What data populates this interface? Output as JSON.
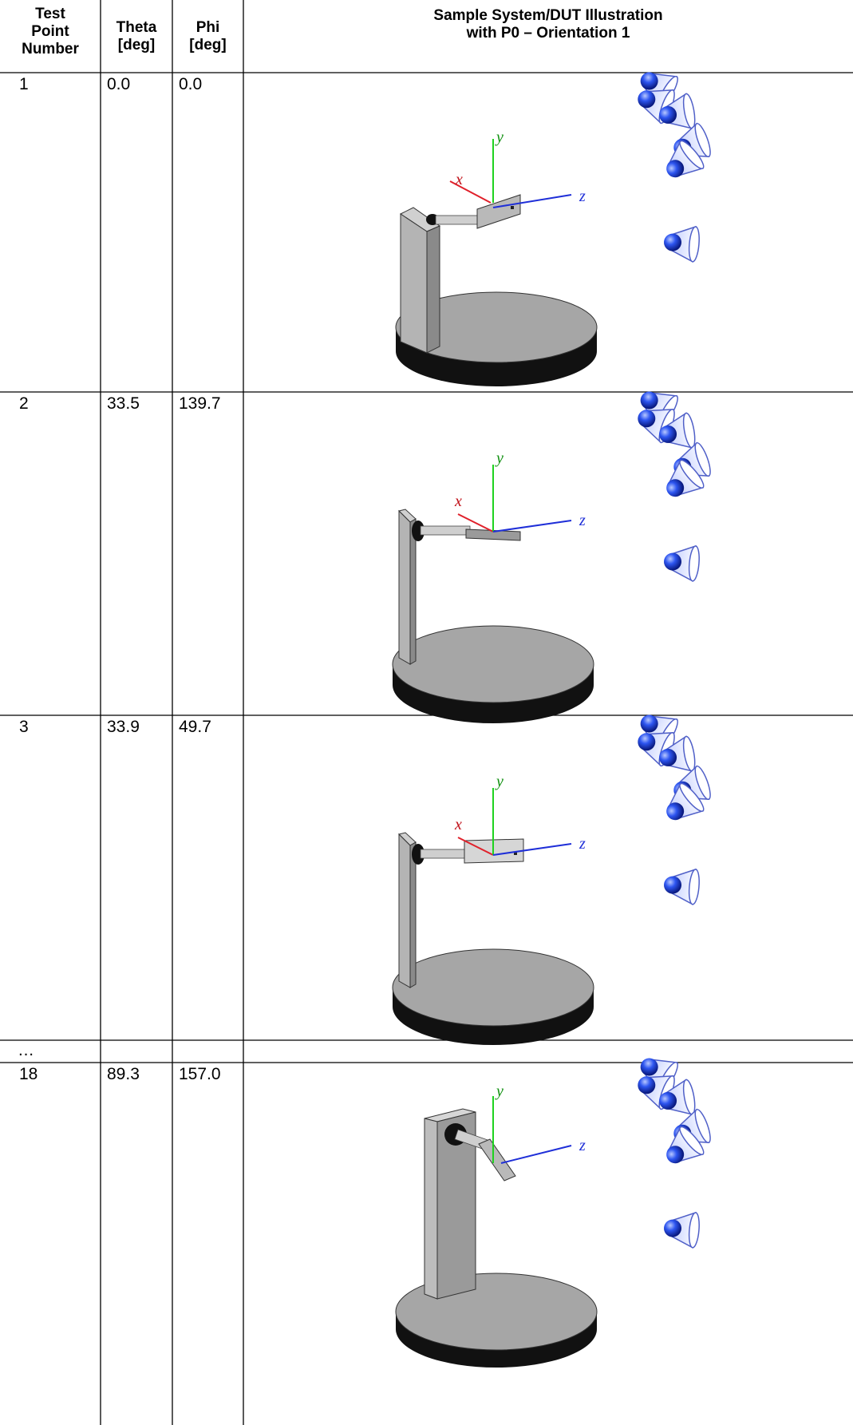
{
  "table": {
    "headers": {
      "test_point": [
        "Test",
        "Point",
        "Number"
      ],
      "theta": [
        "Theta",
        "[deg]"
      ],
      "phi": [
        "Phi",
        "[deg]"
      ],
      "illustration": [
        "Sample System/DUT Illustration",
        "with P0 – Orientation 1"
      ]
    },
    "rows": [
      {
        "test_point": "1",
        "theta": "0.0",
        "phi": "0.0"
      },
      {
        "test_point": "2",
        "theta": "33.5",
        "phi": "139.7"
      },
      {
        "test_point": "3",
        "theta": "33.9",
        "phi": "49.7"
      },
      {
        "test_point": "…",
        "theta": "",
        "phi": ""
      },
      {
        "test_point": "18",
        "theta": "89.3",
        "phi": "157.0"
      }
    ]
  },
  "axes": {
    "x": "x",
    "y": "y",
    "z": "z"
  },
  "colors": {
    "x_axis": "#e0202a",
    "y_axis": "#1fd21f",
    "z_axis": "#1f2fd8",
    "speaker_blue": "#1c3fe0",
    "base_top": "#a4a4a4",
    "base_side": "#111111"
  },
  "icons": [
    "speaker-icon"
  ]
}
